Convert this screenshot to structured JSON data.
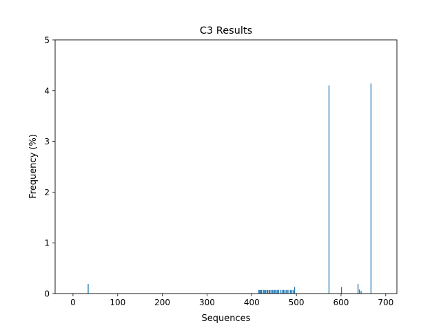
{
  "chart_data": {
    "type": "bar",
    "title": "C3 Results",
    "xlabel": "Sequences",
    "ylabel": "Frequency (%)",
    "xlim": [
      -40,
      725
    ],
    "ylim": [
      0,
      5
    ],
    "xticks": [
      0,
      100,
      200,
      300,
      400,
      500,
      600,
      700
    ],
    "yticks": [
      0,
      1,
      2,
      3,
      4,
      5
    ],
    "grid": false,
    "bar_color": "#1f77b4",
    "points": [
      {
        "x": 34,
        "y": 0.19
      },
      {
        "x": 416,
        "y": 0.07
      },
      {
        "x": 418,
        "y": 0.07
      },
      {
        "x": 420,
        "y": 0.07
      },
      {
        "x": 422,
        "y": 0.07
      },
      {
        "x": 426,
        "y": 0.07
      },
      {
        "x": 428,
        "y": 0.07
      },
      {
        "x": 431,
        "y": 0.07
      },
      {
        "x": 434,
        "y": 0.07
      },
      {
        "x": 436,
        "y": 0.07
      },
      {
        "x": 439,
        "y": 0.07
      },
      {
        "x": 441,
        "y": 0.07
      },
      {
        "x": 444,
        "y": 0.07
      },
      {
        "x": 447,
        "y": 0.07
      },
      {
        "x": 450,
        "y": 0.07
      },
      {
        "x": 452,
        "y": 0.07
      },
      {
        "x": 455,
        "y": 0.07
      },
      {
        "x": 458,
        "y": 0.07
      },
      {
        "x": 460,
        "y": 0.07
      },
      {
        "x": 464,
        "y": 0.07
      },
      {
        "x": 468,
        "y": 0.07
      },
      {
        "x": 471,
        "y": 0.07
      },
      {
        "x": 474,
        "y": 0.07
      },
      {
        "x": 477,
        "y": 0.07
      },
      {
        "x": 480,
        "y": 0.07
      },
      {
        "x": 483,
        "y": 0.07
      },
      {
        "x": 487,
        "y": 0.07
      },
      {
        "x": 490,
        "y": 0.07
      },
      {
        "x": 493,
        "y": 0.07
      },
      {
        "x": 496,
        "y": 0.13
      },
      {
        "x": 573,
        "y": 4.1
      },
      {
        "x": 601,
        "y": 0.13
      },
      {
        "x": 638,
        "y": 0.19
      },
      {
        "x": 641,
        "y": 0.08
      },
      {
        "x": 645,
        "y": 0.05
      },
      {
        "x": 667,
        "y": 4.14
      }
    ]
  }
}
